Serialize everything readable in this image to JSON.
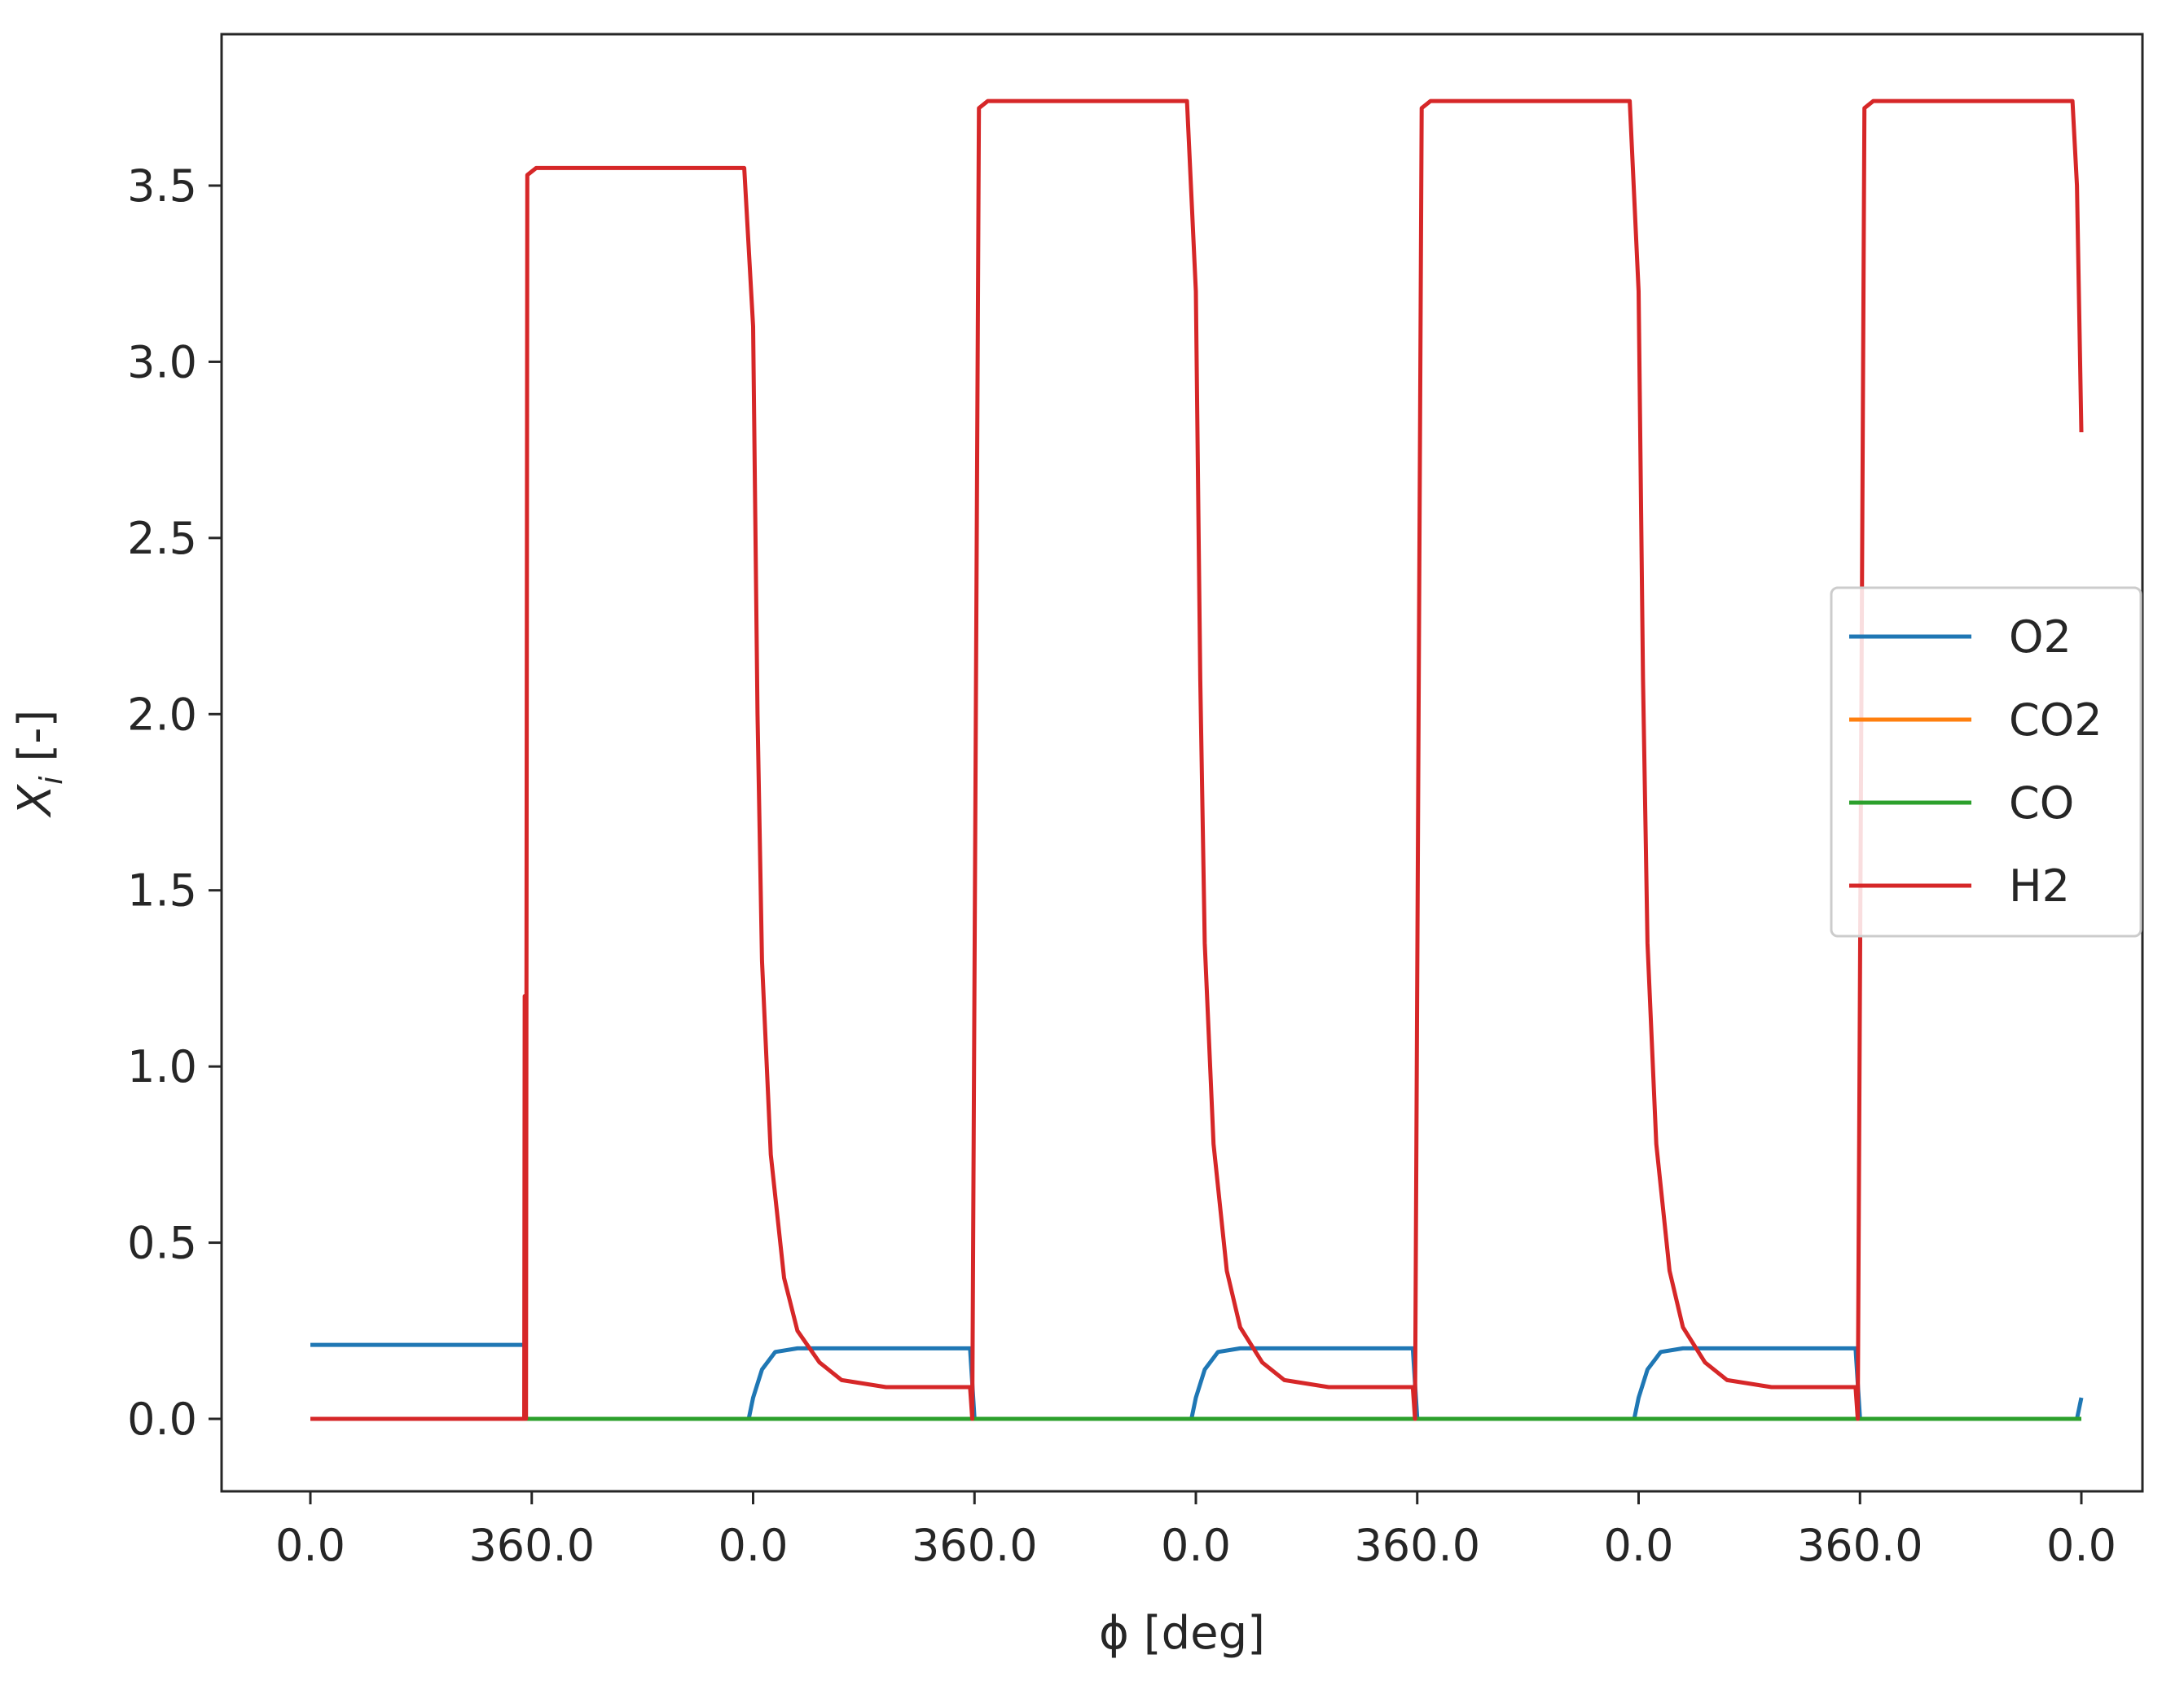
{
  "chart_data": {
    "type": "line",
    "xlabel": "ϕ [deg]",
    "ylabel_main": "X",
    "ylabel_sub": "i",
    "ylabel_rest": " [-]",
    "xlim": [
      0,
      5.0
    ],
    "ylim": [
      -0.2,
      3.85
    ],
    "x_ticks": [
      {
        "pos": 0.0,
        "label": "0.0"
      },
      {
        "pos": 0.5,
        "label": "360.0"
      },
      {
        "pos": 1.0,
        "label": "0.0"
      },
      {
        "pos": 1.5,
        "label": "360.0"
      },
      {
        "pos": 2.0,
        "label": "0.0"
      },
      {
        "pos": 2.5,
        "label": "360.0"
      },
      {
        "pos": 3.0,
        "label": "0.0"
      },
      {
        "pos": 3.5,
        "label": "360.0"
      },
      {
        "pos": 4.0,
        "label": "0.0"
      }
    ],
    "y_ticks": [
      0.0,
      0.5,
      1.0,
      1.5,
      2.0,
      2.5,
      3.0,
      3.5
    ],
    "y_tick_labels": [
      "0.0",
      "0.5",
      "1.0",
      "1.5",
      "2.0",
      "2.5",
      "3.0",
      "3.5"
    ],
    "legend_position": "center-right",
    "series": [
      {
        "name": "O2",
        "color": "#1f77b4",
        "points": [
          [
            0.0,
            0.21
          ],
          [
            0.485,
            0.21
          ],
          [
            0.486,
            0.0
          ],
          [
            0.99,
            0.0
          ],
          [
            1.0,
            0.06
          ],
          [
            1.02,
            0.14
          ],
          [
            1.05,
            0.19
          ],
          [
            1.1,
            0.2
          ],
          [
            1.49,
            0.2
          ],
          [
            1.5,
            0.0
          ],
          [
            1.99,
            0.0
          ],
          [
            2.0,
            0.06
          ],
          [
            2.02,
            0.14
          ],
          [
            2.05,
            0.19
          ],
          [
            2.1,
            0.2
          ],
          [
            2.49,
            0.2
          ],
          [
            2.5,
            0.0
          ],
          [
            2.99,
            0.0
          ],
          [
            3.0,
            0.06
          ],
          [
            3.02,
            0.14
          ],
          [
            3.05,
            0.19
          ],
          [
            3.1,
            0.2
          ],
          [
            3.49,
            0.2
          ],
          [
            3.5,
            0.0
          ],
          [
            3.99,
            0.0
          ],
          [
            4.0,
            0.06
          ]
        ]
      },
      {
        "name": "CO2",
        "color": "#ff7f0e",
        "points": [
          [
            0.0,
            0.0
          ],
          [
            4.0,
            0.0
          ]
        ]
      },
      {
        "name": "CO",
        "color": "#2ca02c",
        "points": [
          [
            0.0,
            0.0
          ],
          [
            4.0,
            0.0
          ]
        ]
      },
      {
        "name": "H2",
        "color": "#d62728",
        "points": [
          [
            0.0,
            0.0
          ],
          [
            0.483,
            0.0
          ],
          [
            0.484,
            1.2
          ],
          [
            0.487,
            0.0
          ],
          [
            0.49,
            3.53
          ],
          [
            0.51,
            3.55
          ],
          [
            0.98,
            3.55
          ],
          [
            1.0,
            3.1
          ],
          [
            1.01,
            2.0
          ],
          [
            1.02,
            1.3
          ],
          [
            1.04,
            0.75
          ],
          [
            1.07,
            0.4
          ],
          [
            1.1,
            0.25
          ],
          [
            1.15,
            0.16
          ],
          [
            1.2,
            0.11
          ],
          [
            1.3,
            0.09
          ],
          [
            1.49,
            0.09
          ],
          [
            1.495,
            0.0
          ],
          [
            1.51,
            3.72
          ],
          [
            1.53,
            3.74
          ],
          [
            1.98,
            3.74
          ],
          [
            2.0,
            3.2
          ],
          [
            2.01,
            2.1
          ],
          [
            2.02,
            1.35
          ],
          [
            2.04,
            0.78
          ],
          [
            2.07,
            0.42
          ],
          [
            2.1,
            0.26
          ],
          [
            2.15,
            0.16
          ],
          [
            2.2,
            0.11
          ],
          [
            2.3,
            0.09
          ],
          [
            2.49,
            0.09
          ],
          [
            2.495,
            0.0
          ],
          [
            2.51,
            3.72
          ],
          [
            2.53,
            3.74
          ],
          [
            2.98,
            3.74
          ],
          [
            3.0,
            3.2
          ],
          [
            3.01,
            2.1
          ],
          [
            3.02,
            1.35
          ],
          [
            3.04,
            0.78
          ],
          [
            3.07,
            0.42
          ],
          [
            3.1,
            0.26
          ],
          [
            3.15,
            0.16
          ],
          [
            3.2,
            0.11
          ],
          [
            3.3,
            0.09
          ],
          [
            3.49,
            0.09
          ],
          [
            3.495,
            0.0
          ],
          [
            3.51,
            3.72
          ],
          [
            3.53,
            3.74
          ],
          [
            3.98,
            3.74
          ],
          [
            3.99,
            3.5
          ],
          [
            4.0,
            2.8
          ]
        ]
      }
    ]
  }
}
